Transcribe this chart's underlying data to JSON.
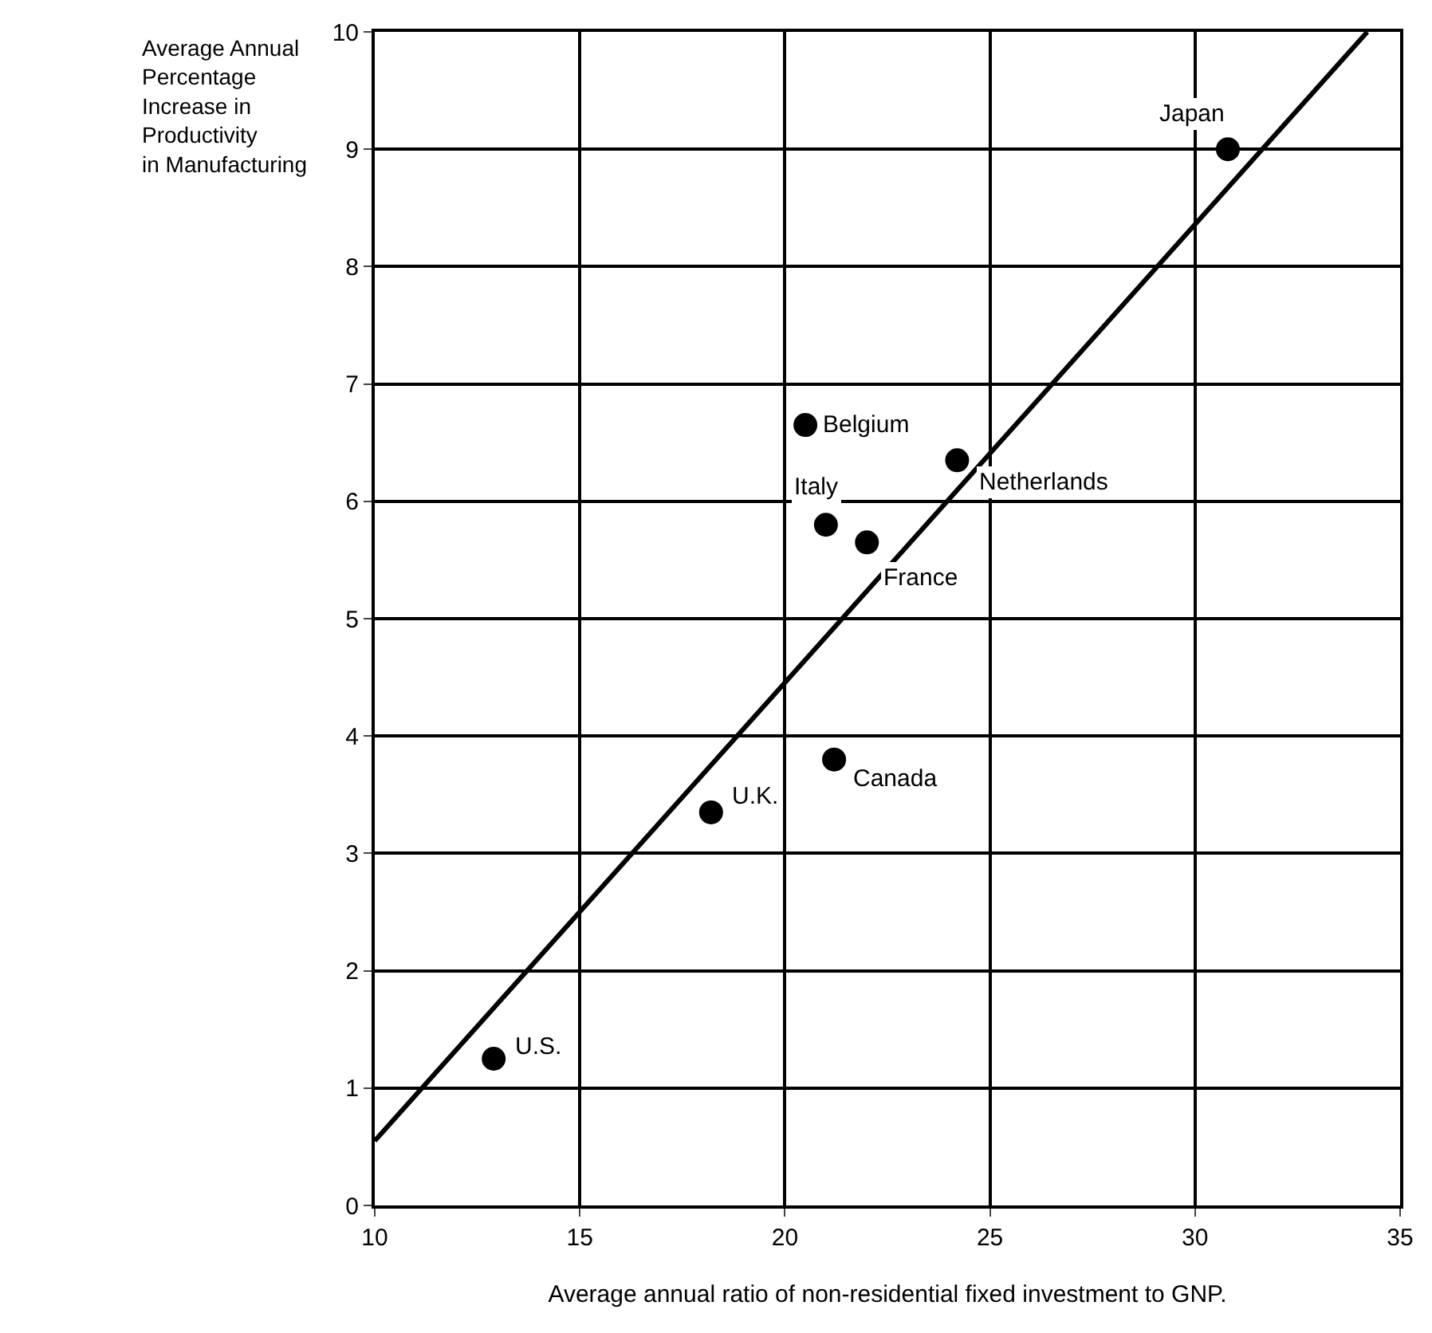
{
  "chart_data": {
    "type": "scatter",
    "xlabel": "Average annual ratio of non-residential fixed investment to GNP.",
    "ylabel": "Average Annual\nPercentage\nIncrease in\nProductivity\nin Manufacturing",
    "x": [
      12.9,
      18.2,
      21.2,
      21.0,
      22.0,
      20.5,
      24.2,
      30.8
    ],
    "series": [
      {
        "color": "#000000",
        "values": [
          1.25,
          3.35,
          3.8,
          5.8,
          5.65,
          6.65,
          6.35,
          9.0
        ],
        "marker": "circle"
      },
      {
        "type": "line",
        "color": "#000000",
        "x": [
          10,
          34.2
        ],
        "values": [
          0.55,
          10.0
        ],
        "marker": "none"
      }
    ],
    "annotations": [
      {
        "text": "U.S.",
        "x": 12.9,
        "y": 1.25
      },
      {
        "text": "U.K.",
        "x": 18.2,
        "y": 3.35
      },
      {
        "text": "Canada",
        "x": 21.2,
        "y": 3.8
      },
      {
        "text": "Italy",
        "x": 21.0,
        "y": 5.8
      },
      {
        "text": "France",
        "x": 22.0,
        "y": 5.65
      },
      {
        "text": "Belgium",
        "x": 20.5,
        "y": 6.65
      },
      {
        "text": "Netherlands",
        "x": 24.2,
        "y": 6.35
      },
      {
        "text": "Japan",
        "x": 30.8,
        "y": 9.0
      }
    ],
    "xlim": [
      10,
      35
    ],
    "xticks": [
      10,
      15,
      20,
      25,
      30,
      35
    ],
    "ylim": [
      0,
      10
    ],
    "yticks": [
      0,
      1,
      2,
      3,
      4,
      5,
      6,
      7,
      8,
      9,
      10
    ],
    "grid": true
  }
}
